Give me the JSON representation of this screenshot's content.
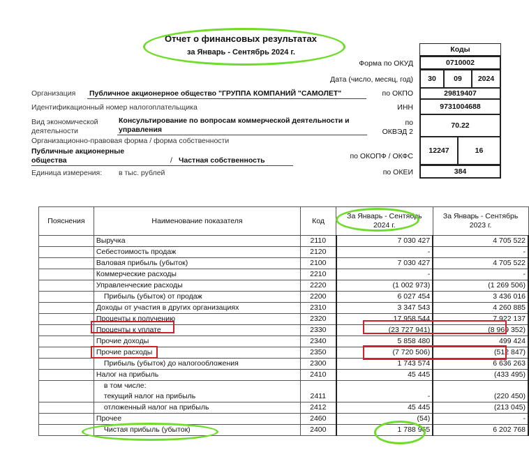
{
  "header": {
    "title": "Отчет о финансовых результатах",
    "period": "за Январь - Сентябрь 2024 г."
  },
  "codes": {
    "title": "Коды",
    "okud_label": "Форма по ОКУД",
    "okud": "0710002",
    "date_label": "Дата (число, месяц, год)",
    "day": "30",
    "month": "09",
    "year": "2024",
    "okpo_label": "по ОКПО",
    "okpo": "29819407",
    "inn_label": "ИНН",
    "inn": "9731004688",
    "okved_label1": "по",
    "okved_label2": "ОКВЭД 2",
    "okved": "70.22",
    "okopf_label": "по ОКОПФ / ОКФС",
    "okopf": "12247",
    "okfs": "16",
    "okei_label": "по ОКЕИ",
    "okei": "384"
  },
  "org": {
    "org_label": "Организация",
    "org_name": "Публичное акционерное общество \"ГРУППА КОМПАНИЙ \"САМОЛЕТ\"",
    "inn_text": "Идентификационный номер налогоплательщика",
    "activity_label1": "Вид экономической",
    "activity_label2": "деятельности",
    "activity1": "Консультирование по вопросам коммерческой деятельности и",
    "activity2": "управления",
    "form_label": "Организационно-правовая форма / форма собственности",
    "form1": "Публичные акционерные",
    "form2": "общества",
    "slash": "/",
    "ownership": "Частная собственность",
    "unit_label": "Единица измерения:",
    "unit": "в тыс. рублей"
  },
  "table": {
    "headers": [
      "Пояснения",
      "Наименование показателя",
      "Код",
      "За Январь - Сентябрь 2024 г.",
      "За Январь - Сентябрь 2023 г."
    ],
    "rows": [
      {
        "name": "Выручка",
        "code": "2110",
        "v2024": "7 030 427",
        "v2023": "4 705 522"
      },
      {
        "name": "Себестоимость продаж",
        "code": "2120",
        "v2024": "-",
        "v2023": "-"
      },
      {
        "name": "Валовая прибыль (убыток)",
        "code": "2100",
        "v2024": "7 030 427",
        "v2023": "4 705 522"
      },
      {
        "name": "Коммерческие расходы",
        "code": "2210",
        "v2024": "-",
        "v2023": "-"
      },
      {
        "name": "Управленческие расходы",
        "code": "2220",
        "v2024": "(1 002 973)",
        "v2023": "(1 269 506)"
      },
      {
        "name": "Прибыль (убыток) от продаж",
        "code": "2200",
        "v2024": "6 027 454",
        "v2023": "3 436 016",
        "indent": true
      },
      {
        "name": "Доходы от участия в других организациях",
        "code": "2310",
        "v2024": "3 347 543",
        "v2023": "4 260 885"
      },
      {
        "name": "Проценты к получению",
        "code": "2320",
        "v2024": "17 958 544",
        "v2023": "7 922 137"
      },
      {
        "name": "Проценты к уплате",
        "code": "2330",
        "v2024": "(23 727 941)",
        "v2023": "(8 969 352)"
      },
      {
        "name": "Прочие доходы",
        "code": "2340",
        "v2024": "5 858 480",
        "v2023": "499 424"
      },
      {
        "name": "Прочие расходы",
        "code": "2350",
        "v2024": "(7 720 506)",
        "v2023": "(512 847)"
      },
      {
        "name": "Прибыль (убыток) до налогообложения",
        "code": "2300",
        "v2024": "1 743 574",
        "v2023": "6 636 263",
        "indent": true
      },
      {
        "name": "Налог на прибыль",
        "code": "2410",
        "v2024": "45 445",
        "v2023": "(433 495)"
      }
    ],
    "tax_sub": {
      "intro": "в том числе:",
      "name": "текущий налог на прибыль",
      "code": "2411",
      "v2024": "-",
      "v2023": "(220 450)"
    },
    "rows2": [
      {
        "name": "отложенный налог на прибыль",
        "code": "2412",
        "v2024": "45 445",
        "v2023": "(213 045)",
        "indent": true
      },
      {
        "name": "Прочее",
        "code": "2460",
        "v2024": "(54)",
        "v2023": "-"
      },
      {
        "name": "Чистая прибыль (убыток)",
        "code": "2400",
        "v2024": "1 788 965",
        "v2023": "6 202 768",
        "indent": true
      }
    ]
  },
  "colors": {
    "highlight_green": "#6fdc2a",
    "highlight_red": "#d0202a"
  }
}
